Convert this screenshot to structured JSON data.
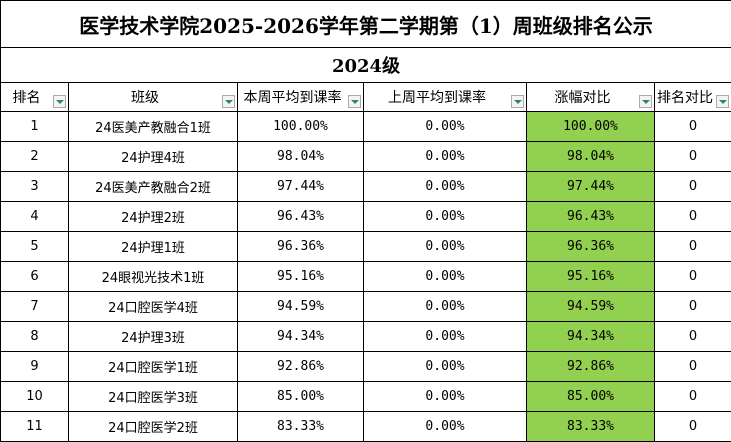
{
  "title": "医学技术学院2025-2026学年第二学期第（1）周班级排名公示",
  "subtitle": "2024级",
  "table": {
    "headers": [
      "排名",
      "班级",
      "本周平均到课率",
      "上周平均到课率",
      "涨幅对比",
      "排名对比"
    ],
    "rows": [
      [
        1,
        "24医美产教融合1班",
        "100.00%",
        "0.00%",
        "100.00%",
        0
      ],
      [
        2,
        "24护理4班",
        "98.04%",
        "0.00%",
        "98.04%",
        0
      ],
      [
        3,
        "24医美产教融合2班",
        "97.44%",
        "0.00%",
        "97.44%",
        0
      ],
      [
        4,
        "24护理2班",
        "96.43%",
        "0.00%",
        "96.43%",
        0
      ],
      [
        5,
        "24护理1班",
        "96.36%",
        "0.00%",
        "96.36%",
        0
      ],
      [
        6,
        "24眼视光技术1班",
        "95.16%",
        "0.00%",
        "95.16%",
        0
      ],
      [
        7,
        "24口腔医学4班",
        "94.59%",
        "0.00%",
        "94.59%",
        0
      ],
      [
        8,
        "24护理3班",
        "94.34%",
        "0.00%",
        "94.34%",
        0
      ],
      [
        9,
        "24口腔医学1班",
        "92.86%",
        "0.00%",
        "92.86%",
        0
      ],
      [
        10,
        "24口腔医学3班",
        "85.00%",
        "0.00%",
        "85.00%",
        0
      ],
      [
        11,
        "24口腔医学2班",
        "83.33%",
        "0.00%",
        "83.33%",
        0
      ]
    ]
  }
}
